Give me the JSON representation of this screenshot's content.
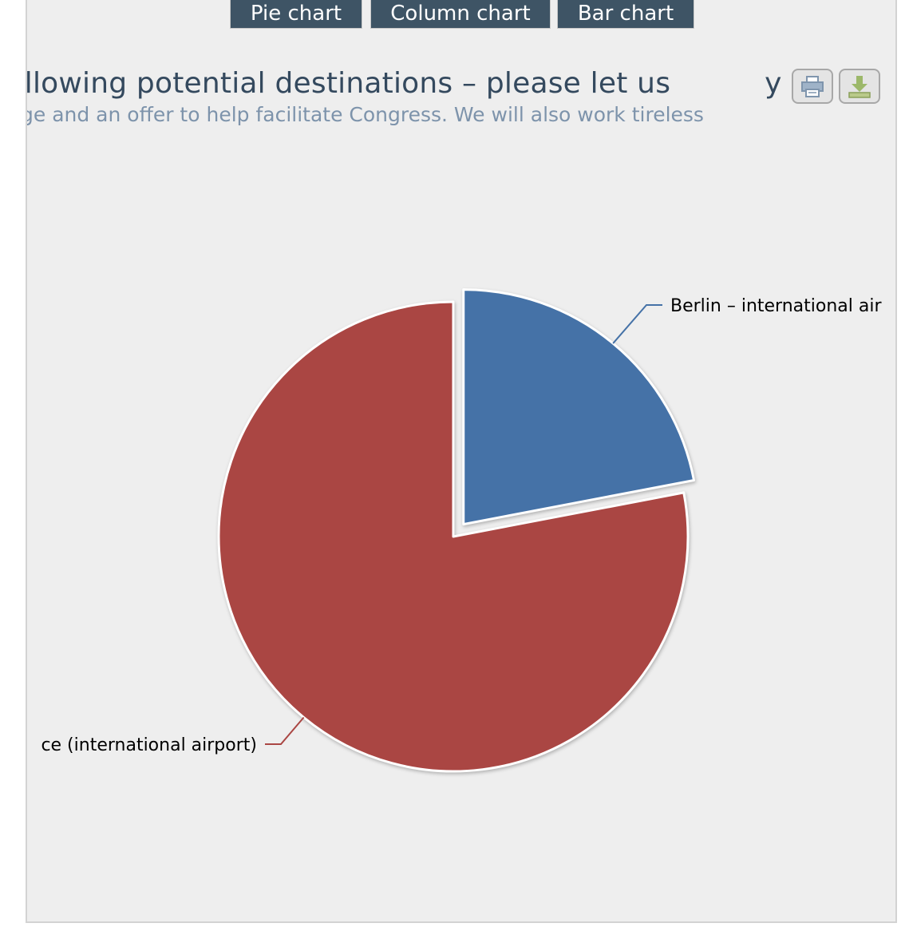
{
  "buttons": {
    "pie": "Pie chart",
    "column": "Column chart",
    "bar": "Bar chart"
  },
  "chart_data": {
    "type": "pie",
    "title": "sted the following potential destinations – please let us",
    "title_tail": "y",
    "subtitle": "n inside knowledge and an offer to help facilitate Congress. We will also work tireless",
    "slices": [
      {
        "label": "Berlin – international air",
        "value": 22,
        "color": "#4572a7",
        "sliced": true
      },
      {
        "label": "ce (international airport)",
        "value": 78,
        "color": "#aa4643",
        "sliced": false
      }
    ]
  },
  "icons": {
    "print": "print-icon",
    "export": "download-icon"
  }
}
